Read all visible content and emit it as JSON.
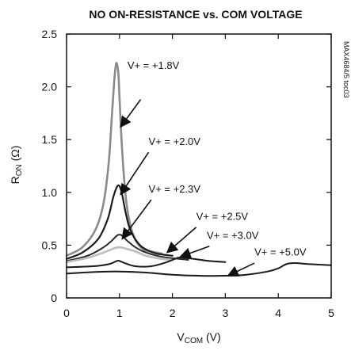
{
  "chart_data": {
    "type": "line",
    "title": "NO ON-RESISTANCE vs. COM VOLTAGE",
    "xlabel": {
      "main": "V",
      "sub": "COM",
      "unit": " (V)"
    },
    "ylabel": {
      "main": "R",
      "sub": "ON",
      "unit": " (Ω)"
    },
    "figure_code": "MAX4684/5 toc03",
    "xlim": [
      0,
      5
    ],
    "ylim": [
      0,
      2.5
    ],
    "xticks": [
      0,
      1,
      2,
      3,
      4,
      5
    ],
    "yticks": [
      0,
      0.5,
      1.0,
      1.5,
      2.0,
      2.5
    ],
    "xtick_labels": [
      "0",
      "1",
      "2",
      "3",
      "4",
      "5"
    ],
    "ytick_labels": [
      "0",
      "0.5",
      "1.0",
      "1.5",
      "2.0",
      "2.5"
    ],
    "grid": false,
    "series": [
      {
        "name": "V+ = +1.8V",
        "color": "#8a8a8a",
        "width": 2.6,
        "x": [
          0,
          0.3,
          0.55,
          0.7,
          0.8,
          0.86,
          0.9,
          0.93,
          0.95,
          0.98,
          1.0,
          1.05,
          1.12,
          1.2,
          1.3,
          1.45,
          1.6,
          1.8
        ],
        "y": [
          0.4,
          0.48,
          0.65,
          0.9,
          1.3,
          1.75,
          2.05,
          2.2,
          2.22,
          2.12,
          1.9,
          1.4,
          0.95,
          0.7,
          0.55,
          0.46,
          0.44,
          0.42
        ]
      },
      {
        "name": "V+ = +2.0V",
        "color": "#1a1a1a",
        "width": 2.2,
        "x": [
          0,
          0.3,
          0.6,
          0.78,
          0.88,
          0.95,
          1.0,
          1.05,
          1.12,
          1.2,
          1.35,
          1.5,
          1.7,
          2.0
        ],
        "y": [
          0.37,
          0.43,
          0.56,
          0.75,
          0.95,
          1.05,
          1.06,
          0.98,
          0.8,
          0.65,
          0.52,
          0.46,
          0.42,
          0.4
        ]
      },
      {
        "name": "V+ = +2.3V",
        "color": "#2a2a2a",
        "width": 2,
        "x": [
          0,
          0.4,
          0.7,
          0.85,
          0.95,
          1.0,
          1.05,
          1.15,
          1.3,
          1.5,
          1.8,
          2.3
        ],
        "y": [
          0.35,
          0.4,
          0.48,
          0.54,
          0.59,
          0.6,
          0.59,
          0.54,
          0.48,
          0.43,
          0.39,
          0.36
        ]
      },
      {
        "name": "V+ = +2.5V",
        "color": "#bdbdbd",
        "width": 2.6,
        "x": [
          0,
          0.4,
          0.7,
          0.9,
          1.0,
          1.1,
          1.3,
          1.5,
          1.8,
          2.0
        ],
        "y": [
          0.34,
          0.38,
          0.43,
          0.47,
          0.48,
          0.47,
          0.44,
          0.4,
          0.37,
          0.36
        ]
      },
      {
        "name": "V+ = +3.0V",
        "color": "#1a1a1a",
        "width": 2,
        "x": [
          0,
          0.5,
          0.8,
          0.95,
          1.0,
          1.1,
          1.3,
          1.6,
          1.9,
          2.1,
          2.2,
          2.4,
          2.7,
          3.0
        ],
        "y": [
          0.29,
          0.3,
          0.32,
          0.35,
          0.35,
          0.33,
          0.3,
          0.3,
          0.34,
          0.38,
          0.38,
          0.37,
          0.35,
          0.34
        ]
      },
      {
        "name": "V+ = +5.0V",
        "color": "#1a1a1a",
        "width": 2,
        "x": [
          0,
          0.5,
          1.0,
          1.5,
          2.0,
          2.5,
          3.0,
          3.4,
          3.8,
          4.0,
          4.15,
          4.3,
          4.6,
          5.0
        ],
        "y": [
          0.23,
          0.245,
          0.25,
          0.24,
          0.22,
          0.21,
          0.21,
          0.22,
          0.25,
          0.28,
          0.32,
          0.33,
          0.32,
          0.31
        ]
      }
    ],
    "annotations": [
      {
        "label": "V+ = +1.8V",
        "text_at": [
          1.15,
          2.17
        ],
        "arrow_from": [
          1.4,
          1.88
        ],
        "arrow_to": [
          1.02,
          1.62
        ]
      },
      {
        "label": "V+ = +2.0V",
        "text_at": [
          1.55,
          1.45
        ],
        "arrow_from": [
          1.55,
          1.38
        ],
        "arrow_to": [
          1.02,
          0.98
        ]
      },
      {
        "label": "V+ = +2.3V",
        "text_at": [
          1.55,
          1.0
        ],
        "arrow_from": [
          1.6,
          0.93
        ],
        "arrow_to": [
          1.05,
          0.56
        ]
      },
      {
        "label": "V+ = +2.5V",
        "text_at": [
          2.45,
          0.74
        ],
        "arrow_from": [
          2.45,
          0.67
        ],
        "arrow_to": [
          1.9,
          0.43
        ]
      },
      {
        "label": "V+ = +3.0V",
        "text_at": [
          2.65,
          0.56
        ],
        "arrow_from": [
          2.7,
          0.49
        ],
        "arrow_to": [
          2.15,
          0.39
        ]
      },
      {
        "label": "V+ = +5.0V",
        "text_at": [
          3.55,
          0.4
        ],
        "arrow_from": [
          3.55,
          0.33
        ],
        "arrow_to": [
          3.05,
          0.21
        ]
      }
    ]
  }
}
